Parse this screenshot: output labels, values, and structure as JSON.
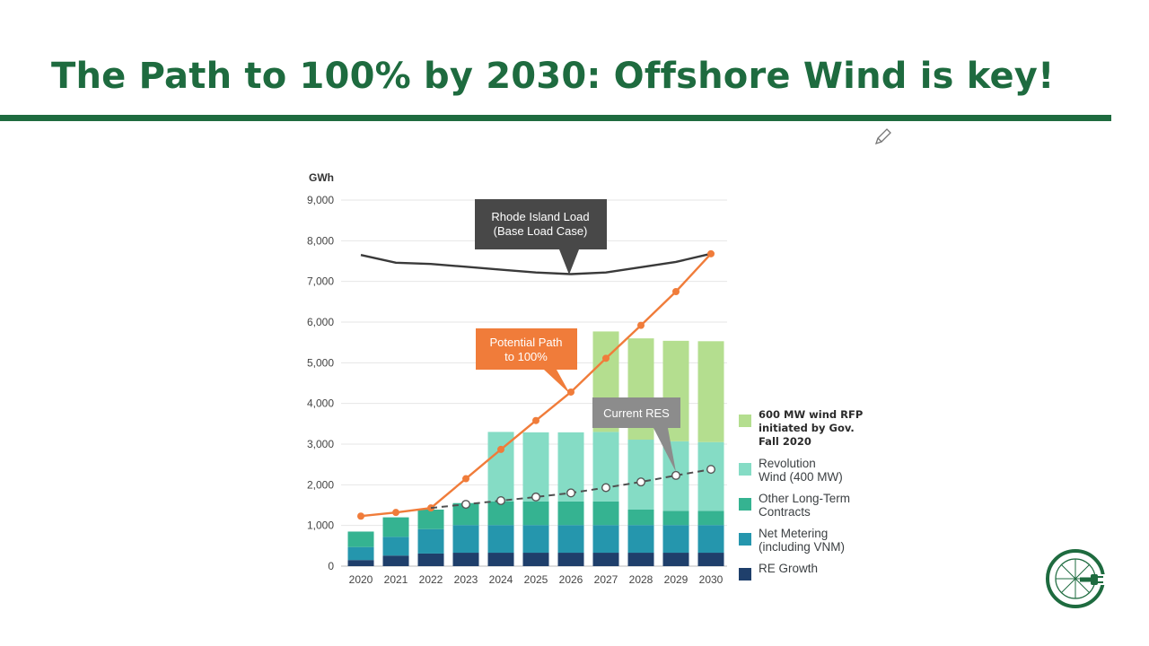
{
  "slide": {
    "title": "The Path to 100% by 2030: Offshore Wind is key!"
  },
  "icons": {
    "pencil": "pencil-icon",
    "logo": "green-g-plug-logo"
  },
  "colors": {
    "title_green": "#1e6b3f",
    "re_growth": "#1f3f6b",
    "net_metering": "#2596ad",
    "other_long_term": "#35b391",
    "revolution_wind": "#85dcc5",
    "wind_rfp": "#b4de8f",
    "load_line": "#3a3a3a",
    "potential_path": "#f07c3a",
    "current_res": "#505050",
    "callout_dark": "#4a4a4a",
    "callout_gray": "#8a8a8a"
  },
  "chart_data": {
    "type": "bar",
    "stacked": true,
    "ylabel": "GWh",
    "ylim": [
      0,
      9000
    ],
    "yticks": [
      "0",
      "1,000",
      "2,000",
      "3,000",
      "4,000",
      "5,000",
      "6,000",
      "7,000",
      "8,000",
      "9,000"
    ],
    "grid": true,
    "legend_position": "right",
    "categories": [
      "2020",
      "2021",
      "2022",
      "2023",
      "2024",
      "2025",
      "2026",
      "2027",
      "2028",
      "2029",
      "2030"
    ],
    "series": [
      {
        "name": "RE Growth",
        "color": "#1f3f6b",
        "values": [
          150,
          260,
          310,
          330,
          330,
          330,
          330,
          330,
          330,
          330,
          330
        ]
      },
      {
        "name": "Net Metering\n(including VNM)",
        "color": "#2596ad",
        "values": [
          320,
          460,
          600,
          680,
          680,
          680,
          680,
          680,
          680,
          680,
          680
        ]
      },
      {
        "name": "Other Long-Term\nContracts",
        "color": "#35b391",
        "values": [
          380,
          480,
          480,
          540,
          580,
          580,
          580,
          580,
          380,
          350,
          350
        ]
      },
      {
        "name": "Revolution\nWind (400 MW)",
        "color": "#85dcc5",
        "values": [
          0,
          0,
          0,
          0,
          1710,
          1700,
          1700,
          1710,
          1720,
          1710,
          1690
        ]
      },
      {
        "name": "600 MW wind RFP\ninitiated by Gov.\nFall 2020",
        "color": "#b4de8f",
        "values": [
          0,
          0,
          0,
          0,
          0,
          0,
          0,
          2470,
          2490,
          2470,
          2480
        ]
      }
    ],
    "lines": [
      {
        "name": "Rhode Island Load (Base Load Case)",
        "color": "#3a3a3a",
        "values": [
          7650,
          7460,
          7430,
          7360,
          7290,
          7220,
          7180,
          7220,
          7350,
          7480,
          7680
        ]
      },
      {
        "name": "Potential Path to 100%",
        "color": "#f07c3a",
        "values": [
          1230,
          1320,
          1430,
          2150,
          2870,
          3580,
          4280,
          5110,
          5920,
          6750,
          7680
        ]
      },
      {
        "name": "Current RES",
        "color": "#505050",
        "dashed": true,
        "values": [
          null,
          null,
          1430,
          1520,
          1610,
          1700,
          1800,
          1930,
          2070,
          2230,
          2380
        ]
      }
    ],
    "annotations": [
      {
        "text": "Rhode Island Load\n(Base Load Case)",
        "target": "load"
      },
      {
        "text": "Potential Path\nto 100%",
        "target": "path"
      },
      {
        "text": "Current RES",
        "target": "res"
      }
    ]
  },
  "legend_order": [
    4,
    3,
    2,
    1,
    0
  ]
}
